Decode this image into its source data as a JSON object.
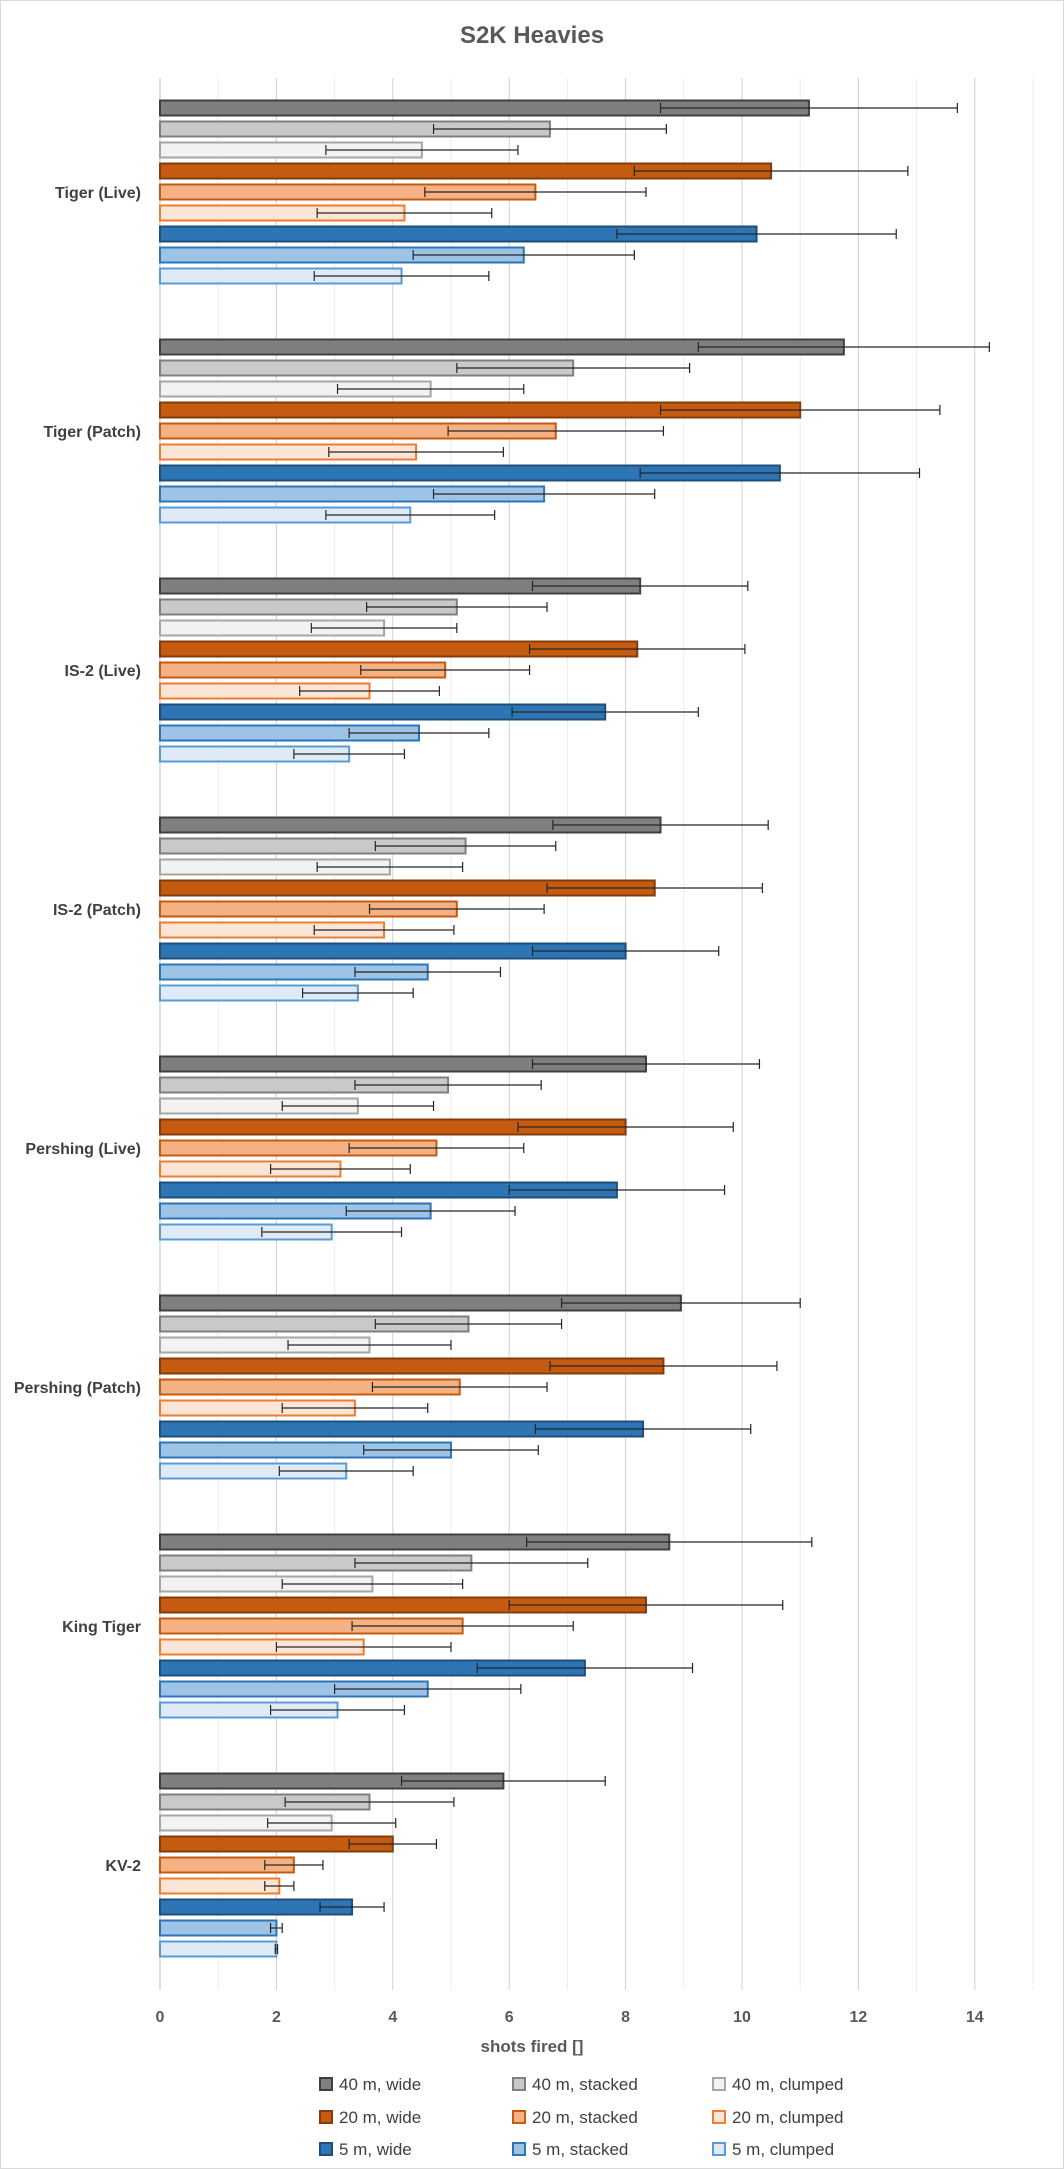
{
  "chart_data": {
    "type": "bar",
    "orientation": "horizontal",
    "title": "S2K Heavies",
    "xlabel": "shots fired []",
    "ylabel": "",
    "xlim": [
      0,
      15
    ],
    "xticks": [
      "0",
      "2",
      "4",
      "6",
      "8",
      "10",
      "12",
      "14"
    ],
    "grid": "vertical major and minor",
    "legend_position": "bottom",
    "categories": [
      "Tiger (Live)",
      "Tiger (Patch)",
      "IS-2 (Live)",
      "IS-2 (Patch)",
      "Pershing (Live)",
      "Pershing (Patch)",
      "King Tiger",
      "KV-2"
    ],
    "series": [
      {
        "name": "40 m, wide",
        "fill": "#7f7f7f",
        "stroke": "#404040",
        "values": [
          11.15,
          11.75,
          8.25,
          8.6,
          8.35,
          8.95,
          8.75,
          5.9
        ],
        "error": [
          2.55,
          2.5,
          1.85,
          1.85,
          1.95,
          2.05,
          2.45,
          1.75
        ]
      },
      {
        "name": "40 m, stacked",
        "fill": "#c9c9c9",
        "stroke": "#7f7f7f",
        "values": [
          6.7,
          7.1,
          5.1,
          5.25,
          4.95,
          5.3,
          5.35,
          3.6
        ],
        "error": [
          2.0,
          2.0,
          1.55,
          1.55,
          1.6,
          1.6,
          2.0,
          1.45
        ]
      },
      {
        "name": "40 m, clumped",
        "fill": "#f2f2f2",
        "stroke": "#a6a6a6",
        "values": [
          4.5,
          4.65,
          3.85,
          3.95,
          3.4,
          3.6,
          3.65,
          2.95
        ],
        "error": [
          1.65,
          1.6,
          1.25,
          1.25,
          1.3,
          1.4,
          1.55,
          1.1
        ]
      },
      {
        "name": "20 m, wide",
        "fill": "#c55a11",
        "stroke": "#843c0c",
        "values": [
          10.5,
          11.0,
          8.2,
          8.5,
          8.0,
          8.65,
          8.35,
          4.0
        ],
        "error": [
          2.35,
          2.4,
          1.85,
          1.85,
          1.85,
          1.95,
          2.35,
          0.75
        ]
      },
      {
        "name": "20 m, stacked",
        "fill": "#f4b183",
        "stroke": "#c55a11",
        "values": [
          6.45,
          6.8,
          4.9,
          5.1,
          4.75,
          5.15,
          5.2,
          2.3
        ],
        "error": [
          1.9,
          1.85,
          1.45,
          1.5,
          1.5,
          1.5,
          1.9,
          0.5
        ]
      },
      {
        "name": "20 m, clumped",
        "fill": "#fbe5d6",
        "stroke": "#ed7d31",
        "values": [
          4.2,
          4.4,
          3.6,
          3.85,
          3.1,
          3.35,
          3.5,
          2.05
        ],
        "error": [
          1.5,
          1.5,
          1.2,
          1.2,
          1.2,
          1.25,
          1.5,
          0.25
        ]
      },
      {
        "name": "5 m, wide",
        "fill": "#2e75b6",
        "stroke": "#1f4e79",
        "values": [
          10.25,
          10.65,
          7.65,
          8.0,
          7.85,
          8.3,
          7.3,
          3.3
        ],
        "error": [
          2.4,
          2.4,
          1.6,
          1.6,
          1.85,
          1.85,
          1.85,
          0.55
        ]
      },
      {
        "name": "5 m, stacked",
        "fill": "#9dc3e6",
        "stroke": "#2e75b6",
        "values": [
          6.25,
          6.6,
          4.45,
          4.6,
          4.65,
          5.0,
          4.6,
          2.0
        ],
        "error": [
          1.9,
          1.9,
          1.2,
          1.25,
          1.45,
          1.5,
          1.6,
          0.1
        ]
      },
      {
        "name": "5 m, clumped",
        "fill": "#deebf7",
        "stroke": "#5b9bd5",
        "values": [
          4.15,
          4.3,
          3.25,
          3.4,
          2.95,
          3.2,
          3.05,
          2.0
        ],
        "error": [
          1.5,
          1.45,
          0.95,
          0.95,
          1.2,
          1.15,
          1.15,
          0.02
        ]
      }
    ]
  }
}
